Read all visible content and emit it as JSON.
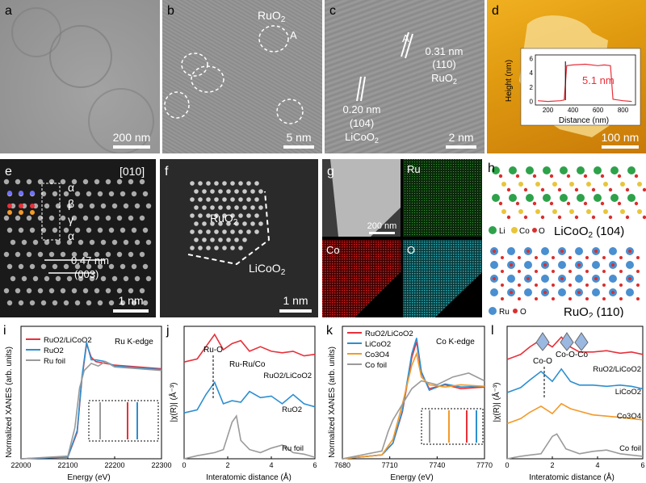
{
  "panels": {
    "a": {
      "letter": "a",
      "scale": "200 nm"
    },
    "b": {
      "letter": "b",
      "label": "RuO2",
      "label_sub": "2",
      "label_base": "RuO",
      "marker": "A",
      "scale": "5 nm"
    },
    "c": {
      "letter": "c",
      "marker": "A",
      "d1": "0.31 nm",
      "p1": "(110)",
      "m1_base": "RuO",
      "m1_sub": "2",
      "d2": "0.20 nm",
      "p2": "(104)",
      "m2_base": "LiCoO",
      "m2_sub": "2",
      "scale": "2 nm"
    },
    "d": {
      "letter": "d",
      "scale": "100 nm",
      "inset_value": "5.1 nm",
      "inset_ylabel": "Height (nm)",
      "inset_xlabel": "Distance (nm)",
      "yticks": [
        "0",
        "2",
        "4",
        "6"
      ],
      "xticks": [
        "200",
        "400",
        "600",
        "800"
      ]
    },
    "e": {
      "letter": "e",
      "zone": "[010]",
      "stack": [
        "α",
        "β",
        "γ",
        "α"
      ],
      "spacing": "0.47 nm",
      "plane": "(003)",
      "scale": "1 nm"
    },
    "f": {
      "letter": "f",
      "label1_base": "RuO",
      "label1_sub": "2",
      "label2_base": "LiCoO",
      "label2_sub": "2",
      "scale": "1 nm"
    },
    "g": {
      "letter": "g",
      "scale": "200 nm",
      "maps": [
        "Ru",
        "Co",
        "O"
      ]
    },
    "h": {
      "letter": "h",
      "legend1": [
        "Li",
        "Co",
        "O"
      ],
      "title1_base": "LiCoO",
      "title1_sub": "2",
      "title1_tail": " (104)",
      "legend2": [
        "Ru",
        "O"
      ],
      "title2_base": "RuO",
      "title2_sub": "2",
      "title2_tail": " (110)"
    },
    "i": {
      "letter": "i",
      "edge": "Ru K-edge",
      "ylabel": "Normalized XANES (arb. units)",
      "xlabel": "Energy (eV)",
      "xticks": [
        "22000",
        "22100",
        "22200",
        "22300"
      ]
    },
    "j": {
      "letter": "j",
      "ylabel": "|χ(R)| (Å⁻³)",
      "xlabel": "Interatomic distance (Å)",
      "xticks": [
        "0",
        "2",
        "4",
        "6"
      ],
      "ann1": "Ru-O",
      "ann2": "Ru-Ru/Co",
      "s1": "RuO2/LiCoO2",
      "s2": "RuO2",
      "s3": "Ru foil"
    },
    "k": {
      "letter": "k",
      "edge": "Co K-edge",
      "ylabel": "Normalized XANES (arb. units)",
      "xlabel": "Energy (eV)",
      "xticks": [
        "7680",
        "7710",
        "7740",
        "7770"
      ]
    },
    "l": {
      "letter": "l",
      "ylabel": "|χ(R)| (Å⁻³)",
      "xlabel": "Interatomic distance (Å)",
      "xticks": [
        "0",
        "2",
        "4",
        "6"
      ],
      "ann1": "Co-O",
      "ann2": "Co-O-Co",
      "s1": "RuO2/LiCoO2",
      "s2": "LiCoO2",
      "s3": "Co3O4",
      "s4": "Co foil"
    }
  },
  "colors": {
    "red": "#e8303a",
    "blue": "#2c8fd0",
    "gray": "#9a9a9a",
    "orange": "#f39a28",
    "li": "#2ea24a",
    "co": "#e8c53a",
    "o": "#d8302e",
    "ru": "#4a8fd0"
  },
  "chart_data": [
    {
      "type": "line",
      "panel": "d-inset",
      "xlabel": "Distance (nm)",
      "ylabel": "Height (nm)",
      "xlim": [
        100,
        900
      ],
      "ylim": [
        -0.5,
        6.5
      ],
      "series": [
        {
          "x": [
            120,
            200,
            300,
            330,
            350,
            400,
            500,
            600,
            650,
            700,
            720,
            800,
            870
          ],
          "y": [
            0.1,
            0.0,
            0.1,
            0.2,
            5.0,
            5.1,
            5.2,
            5.0,
            5.1,
            5.0,
            0.3,
            0.1,
            0.0
          ]
        }
      ]
    },
    {
      "type": "line",
      "panel": "i",
      "xlabel": "Energy (eV)",
      "ylabel": "Normalized XANES (arb. units)",
      "xlim": [
        22000,
        22300
      ],
      "series": [
        {
          "name": "RuO2/LiCoO2",
          "x": [
            22000,
            22100,
            22120,
            22130,
            22140,
            22150,
            22160,
            22180,
            22200,
            22250,
            22300
          ],
          "y": [
            0.0,
            0.02,
            0.3,
            0.9,
            1.3,
            1.15,
            1.1,
            1.08,
            1.06,
            1.04,
            1.02
          ]
        },
        {
          "name": "RuO2",
          "x": [
            22000,
            22100,
            22120,
            22130,
            22140,
            22150,
            22160,
            22180,
            22200,
            22250,
            22300
          ],
          "y": [
            0.0,
            0.02,
            0.32,
            0.92,
            1.32,
            1.12,
            1.12,
            1.1,
            1.05,
            1.03,
            1.01
          ]
        },
        {
          "name": "Ru foil",
          "x": [
            22000,
            22100,
            22115,
            22125,
            22135,
            22150,
            22165,
            22180,
            22200,
            22250,
            22300
          ],
          "y": [
            0.0,
            0.03,
            0.35,
            0.8,
            1.0,
            1.08,
            1.05,
            1.1,
            1.04,
            1.02,
            1.0
          ]
        }
      ]
    },
    {
      "type": "line",
      "panel": "j",
      "xlabel": "Interatomic distance (Å)",
      "ylabel": "|χ(R)| (Å⁻³)",
      "xlim": [
        0,
        6
      ],
      "series": [
        {
          "name": "RuO2/LiCoO2",
          "x": [
            0,
            0.6,
            1.0,
            1.4,
            1.8,
            2.2,
            2.6,
            3.0,
            3.5,
            4.0,
            4.5,
            5.0,
            5.5,
            6.0
          ],
          "y": [
            0,
            0.1,
            0.5,
            0.9,
            0.4,
            0.6,
            0.7,
            0.35,
            0.5,
            0.35,
            0.3,
            0.35,
            0.2,
            0.25
          ]
        },
        {
          "name": "RuO2",
          "x": [
            0,
            0.6,
            1.0,
            1.4,
            1.8,
            2.2,
            2.6,
            3.0,
            3.5,
            4.0,
            4.5,
            5.0,
            5.5,
            6.0
          ],
          "y": [
            0,
            0.1,
            0.6,
            1.0,
            0.3,
            0.4,
            0.35,
            0.7,
            0.5,
            0.55,
            0.3,
            0.6,
            0.3,
            0.2
          ]
        },
        {
          "name": "Ru foil",
          "x": [
            0,
            0.6,
            1.0,
            1.4,
            1.8,
            2.2,
            2.4,
            2.6,
            3.0,
            3.5,
            4.0,
            4.5,
            5.0,
            5.5,
            6.0
          ],
          "y": [
            0,
            0.1,
            0.15,
            0.2,
            0.3,
            1.2,
            1.4,
            0.6,
            0.3,
            0.2,
            0.35,
            0.45,
            0.2,
            0.15,
            0.05
          ]
        }
      ]
    },
    {
      "type": "line",
      "panel": "k",
      "xlabel": "Energy (eV)",
      "ylabel": "Normalized XANES (arb. units)",
      "xlim": [
        7680,
        7770
      ],
      "series": [
        {
          "name": "RuO2/LiCoO2",
          "x": [
            7680,
            7705,
            7712,
            7718,
            7724,
            7727,
            7730,
            7735,
            7745,
            7755,
            7770
          ],
          "y": [
            0,
            0.05,
            0.2,
            0.6,
            1.3,
            1.5,
            1.1,
            0.9,
            0.95,
            0.9,
            0.92
          ]
        },
        {
          "name": "LiCoO2",
          "x": [
            7680,
            7705,
            7712,
            7718,
            7724,
            7727,
            7730,
            7735,
            7745,
            7755,
            7770
          ],
          "y": [
            0,
            0.05,
            0.2,
            0.62,
            1.35,
            1.55,
            1.12,
            0.88,
            0.96,
            0.92,
            0.93
          ]
        },
        {
          "name": "Co3O4",
          "x": [
            7680,
            7705,
            7712,
            7718,
            7724,
            7727,
            7730,
            7735,
            7745,
            7755,
            7770
          ],
          "y": [
            0,
            0.05,
            0.25,
            0.7,
            1.2,
            1.35,
            1.05,
            0.95,
            0.92,
            0.95,
            0.93
          ]
        },
        {
          "name": "Co foil",
          "x": [
            7680,
            7705,
            7709,
            7712,
            7718,
            7724,
            7730,
            7740,
            7750,
            7760,
            7770
          ],
          "y": [
            0,
            0.1,
            0.35,
            0.5,
            0.7,
            0.9,
            1.0,
            0.95,
            1.05,
            1.1,
            1.0
          ]
        }
      ]
    },
    {
      "type": "line",
      "panel": "l",
      "xlabel": "Interatomic distance (Å)",
      "ylabel": "|χ(R)| (Å⁻³)",
      "xlim": [
        0,
        6
      ],
      "series": [
        {
          "name": "RuO2/LiCoO2",
          "x": [
            0,
            0.6,
            1.0,
            1.5,
            2.0,
            2.4,
            2.8,
            3.2,
            3.8,
            4.4,
            5.0,
            5.5,
            6.0
          ],
          "y": [
            0,
            0.2,
            0.5,
            0.8,
            0.5,
            0.9,
            0.5,
            0.3,
            0.3,
            0.35,
            0.25,
            0.3,
            0.2
          ]
        },
        {
          "name": "LiCoO2",
          "x": [
            0,
            0.6,
            1.0,
            1.5,
            2.0,
            2.4,
            2.8,
            3.2,
            3.8,
            4.4,
            5.0,
            5.5,
            6.0
          ],
          "y": [
            0,
            0.2,
            0.5,
            0.85,
            0.45,
            0.95,
            0.45,
            0.3,
            0.3,
            0.25,
            0.3,
            0.25,
            0.15
          ]
        },
        {
          "name": "Co3O4",
          "x": [
            0,
            0.6,
            1.0,
            1.5,
            2.0,
            2.4,
            2.8,
            3.2,
            3.8,
            4.4,
            5.0,
            5.5,
            6.0
          ],
          "y": [
            0,
            0.2,
            0.45,
            0.7,
            0.4,
            0.8,
            0.6,
            0.5,
            0.35,
            0.3,
            0.25,
            0.2,
            0.15
          ]
        },
        {
          "name": "Co foil",
          "x": [
            0,
            0.6,
            1.0,
            1.5,
            2.0,
            2.2,
            2.6,
            3.2,
            3.8,
            4.4,
            5.0,
            5.5,
            6.0
          ],
          "y": [
            0,
            0.1,
            0.15,
            0.2,
            0.9,
            1.0,
            0.4,
            0.2,
            0.3,
            0.35,
            0.2,
            0.15,
            0.1
          ]
        }
      ]
    }
  ]
}
